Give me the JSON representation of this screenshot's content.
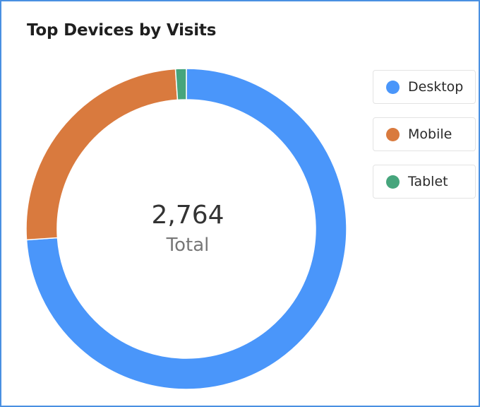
{
  "chart_data": {
    "type": "pie",
    "title": "Top Devices by Visits",
    "total_value": "2,764",
    "total_label": "Total",
    "categories": [
      "Desktop",
      "Mobile",
      "Tablet"
    ],
    "values": [
      2043,
      691,
      30
    ],
    "colors": [
      "#4a96fa",
      "#d97a3e",
      "#46a57c"
    ],
    "legend_position": "right",
    "donut": true
  }
}
